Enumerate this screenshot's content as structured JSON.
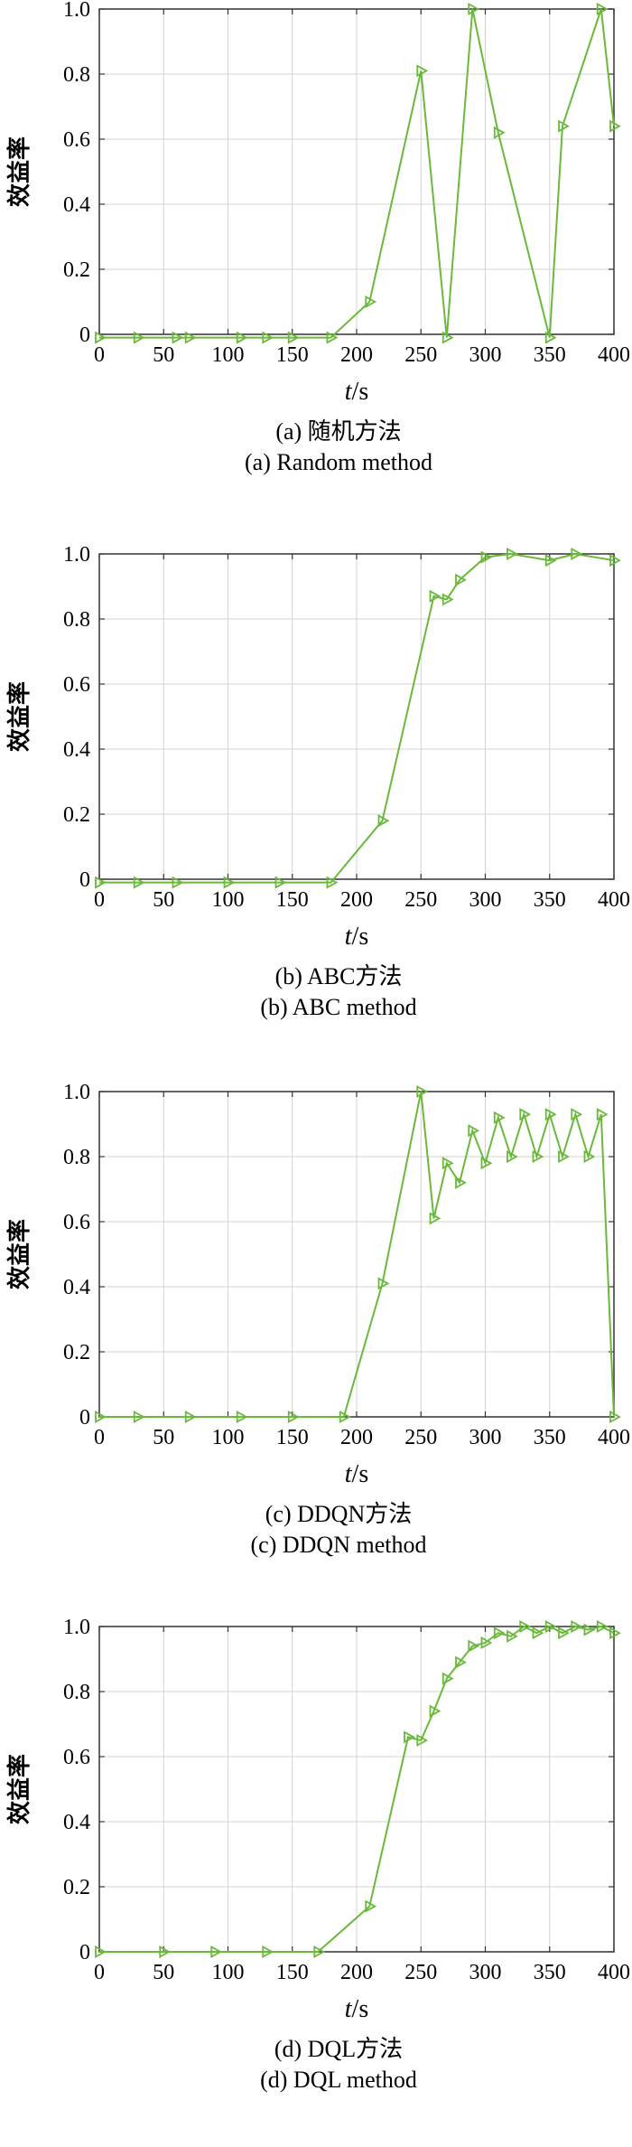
{
  "figure": {
    "line_color": "#6ab93a",
    "marker": "triangle-right"
  },
  "chart_data": [
    {
      "type": "line",
      "caption_cn": "(a) 随机方法",
      "caption_en": "(a) Random method",
      "xlabel_italic": "t",
      "xlabel_unit": "/s",
      "ylabel": "效益率",
      "xlim": [
        0,
        400
      ],
      "ylim": [
        0,
        1
      ],
      "xticks": [
        "0",
        "50",
        "100",
        "150",
        "200",
        "250",
        "300",
        "350",
        "400"
      ],
      "yticks": [
        "0",
        "0.2",
        "0.4",
        "0.6",
        "0.8",
        "1.0"
      ],
      "grid": true,
      "x": [
        0,
        30,
        60,
        70,
        110,
        130,
        150,
        180,
        210,
        250,
        270,
        290,
        310,
        350,
        360,
        390,
        400
      ],
      "y": [
        -0.01,
        -0.01,
        -0.01,
        -0.01,
        -0.01,
        -0.01,
        -0.01,
        -0.01,
        0.1,
        0.81,
        -0.01,
        1.0,
        0.62,
        -0.01,
        0.64,
        1.0,
        0.64
      ]
    },
    {
      "type": "line",
      "caption_cn": "(b) ABC方法",
      "caption_en": "(b) ABC method",
      "xlabel_italic": "t",
      "xlabel_unit": "/s",
      "ylabel": "效益率",
      "xlim": [
        0,
        400
      ],
      "ylim": [
        0,
        1
      ],
      "xticks": [
        "0",
        "50",
        "100",
        "150",
        "200",
        "250",
        "300",
        "350",
        "400"
      ],
      "yticks": [
        "0",
        "0.2",
        "0.4",
        "0.6",
        "0.8",
        "1.0"
      ],
      "grid": true,
      "x": [
        0,
        30,
        60,
        100,
        140,
        180,
        220,
        260,
        270,
        280,
        300,
        320,
        350,
        370,
        400
      ],
      "y": [
        -0.01,
        -0.01,
        -0.01,
        -0.01,
        -0.01,
        -0.01,
        0.18,
        0.87,
        0.86,
        0.92,
        0.99,
        1.0,
        0.98,
        1.0,
        0.98
      ]
    },
    {
      "type": "line",
      "caption_cn": "(c) DDQN方法",
      "caption_en": "(c) DDQN method",
      "xlabel_italic": "t",
      "xlabel_unit": "/s",
      "ylabel": "效益率",
      "xlim": [
        0,
        400
      ],
      "ylim": [
        0,
        1
      ],
      "xticks": [
        "0",
        "50",
        "100",
        "150",
        "200",
        "250",
        "300",
        "350",
        "400"
      ],
      "yticks": [
        "0",
        "0.2",
        "0.4",
        "0.6",
        "0.8",
        "1.0"
      ],
      "grid": true,
      "x": [
        0,
        30,
        70,
        110,
        150,
        190,
        220,
        250,
        260,
        270,
        280,
        290,
        300,
        310,
        320,
        330,
        340,
        350,
        360,
        370,
        380,
        390,
        400
      ],
      "y": [
        0,
        0,
        0,
        0,
        0,
        0,
        0.41,
        1.0,
        0.61,
        0.78,
        0.72,
        0.88,
        0.78,
        0.92,
        0.8,
        0.93,
        0.8,
        0.93,
        0.8,
        0.93,
        0.8,
        0.93,
        0
      ]
    },
    {
      "type": "line",
      "caption_cn": "(d) DQL方法",
      "caption_en": "(d) DQL method",
      "xlabel_italic": "t",
      "xlabel_unit": "/s",
      "ylabel": "效益率",
      "xlim": [
        0,
        400
      ],
      "ylim": [
        0,
        1
      ],
      "xticks": [
        "0",
        "50",
        "100",
        "150",
        "200",
        "250",
        "300",
        "350",
        "400"
      ],
      "yticks": [
        "0",
        "0.2",
        "0.4",
        "0.6",
        "0.8",
        "1.0"
      ],
      "grid": true,
      "x": [
        0,
        50,
        90,
        130,
        170,
        210,
        240,
        250,
        260,
        270,
        280,
        290,
        300,
        310,
        320,
        330,
        340,
        350,
        360,
        370,
        380,
        390,
        400
      ],
      "y": [
        0,
        0,
        0,
        0,
        0,
        0.14,
        0.66,
        0.65,
        0.74,
        0.84,
        0.89,
        0.94,
        0.95,
        0.98,
        0.97,
        1.0,
        0.98,
        1.0,
        0.98,
        1.0,
        0.99,
        1.0,
        0.98
      ]
    }
  ]
}
